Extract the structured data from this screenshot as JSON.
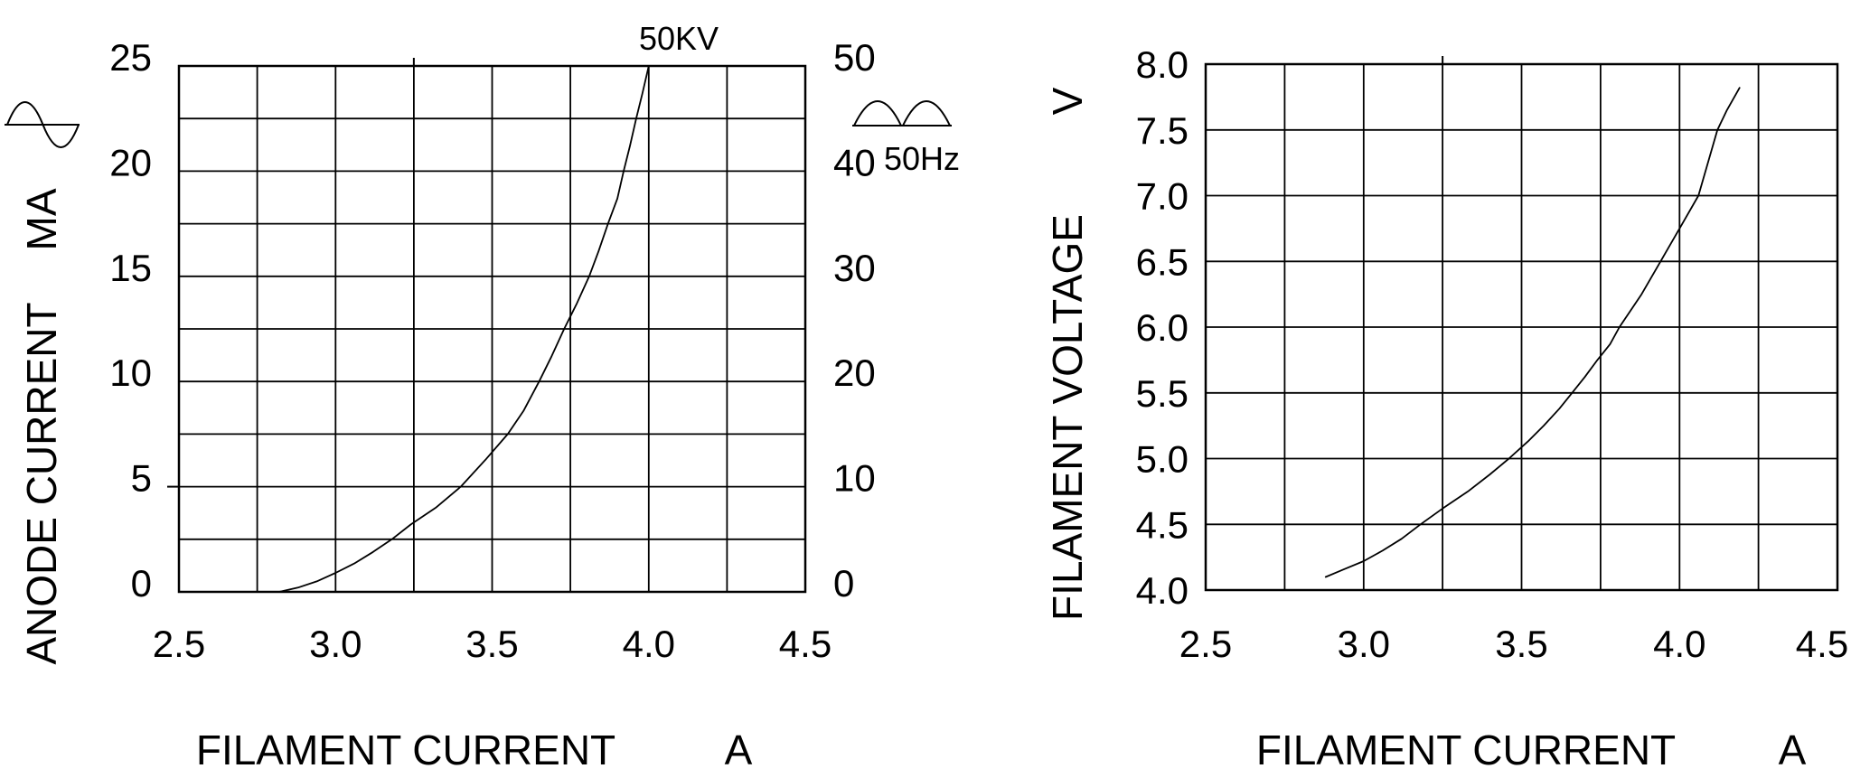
{
  "figure": {
    "background_color": "#ffffff",
    "line_color": "#000000",
    "text_color": "#000000",
    "description": "X-ray tube filament characteristic curves"
  },
  "chart_data": [
    {
      "type": "line",
      "name": "anode-current-vs-filament-current",
      "grid": true,
      "curve_annotation": "50KV",
      "waveform_icon": "sine-wave-icon",
      "x_axis": {
        "label": "FILAMENT CURRENT",
        "unit": "A",
        "range": [
          2.5,
          4.5
        ],
        "grid_step": 0.25,
        "tick_labels": [
          "2.5",
          "3.0",
          "3.5",
          "4.0",
          "4.5"
        ]
      },
      "y_axis_left": {
        "label": "ANODE CURRENT",
        "unit": "MA",
        "range": [
          0,
          25
        ],
        "grid_step": 2.5,
        "tick_labels": [
          "0",
          "5",
          "10",
          "15",
          "20",
          "25"
        ]
      },
      "y_axis_right": {
        "range": [
          0,
          50
        ],
        "tick_labels": [
          "0",
          "10",
          "20",
          "30",
          "40",
          "50"
        ],
        "frequency_annotation": "50Hz",
        "waveform_icon": "full-wave-rectified-icon"
      },
      "series": [
        {
          "name": "50KV",
          "points": [
            [
              2.82,
              0
            ],
            [
              2.88,
              0.2
            ],
            [
              2.94,
              0.5
            ],
            [
              3.0,
              0.9
            ],
            [
              3.06,
              1.35
            ],
            [
              3.12,
              1.9
            ],
            [
              3.18,
              2.5
            ],
            [
              3.24,
              3.2
            ],
            [
              3.32,
              4.0
            ],
            [
              3.4,
              5.0
            ],
            [
              3.48,
              6.3
            ],
            [
              3.55,
              7.5
            ],
            [
              3.6,
              8.6
            ],
            [
              3.65,
              10.0
            ],
            [
              3.69,
              11.2
            ],
            [
              3.73,
              12.5
            ],
            [
              3.77,
              13.7
            ],
            [
              3.81,
              15.0
            ],
            [
              3.84,
              16.2
            ],
            [
              3.87,
              17.5
            ],
            [
              3.9,
              18.7
            ],
            [
              3.92,
              20.0
            ],
            [
              3.94,
              21.2
            ],
            [
              3.96,
              22.5
            ],
            [
              3.98,
              23.7
            ],
            [
              4.0,
              25.0
            ]
          ]
        }
      ]
    },
    {
      "type": "line",
      "name": "filament-voltage-vs-filament-current",
      "grid": true,
      "x_axis": {
        "label": "FILAMENT CURRENT",
        "unit": "A",
        "range": [
          2.5,
          4.5
        ],
        "grid_step": 0.25,
        "tick_labels": [
          "2.5",
          "3.0",
          "3.5",
          "4.0",
          "4.5"
        ]
      },
      "y_axis_left": {
        "label": "FILAMENT VOLTAGE",
        "unit": "V",
        "range": [
          4.0,
          8.0
        ],
        "grid_step": 0.5,
        "tick_labels": [
          "4.0",
          "4.5",
          "5.0",
          "5.5",
          "6.0",
          "6.5",
          "7.0",
          "7.5",
          "8.0"
        ]
      },
      "series": [
        {
          "name": "filament-voltage",
          "points": [
            [
              2.88,
              4.1
            ],
            [
              2.94,
              4.16
            ],
            [
              3.0,
              4.22
            ],
            [
              3.06,
              4.3
            ],
            [
              3.12,
              4.39
            ],
            [
              3.18,
              4.5
            ],
            [
              3.25,
              4.62
            ],
            [
              3.33,
              4.75
            ],
            [
              3.4,
              4.88
            ],
            [
              3.46,
              5.0
            ],
            [
              3.52,
              5.13
            ],
            [
              3.57,
              5.25
            ],
            [
              3.62,
              5.38
            ],
            [
              3.66,
              5.5
            ],
            [
              3.7,
              5.62
            ],
            [
              3.74,
              5.75
            ],
            [
              3.78,
              5.87
            ],
            [
              3.81,
              6.0
            ],
            [
              3.88,
              6.25
            ],
            [
              3.94,
              6.5
            ],
            [
              4.0,
              6.75
            ],
            [
              4.06,
              7.0
            ],
            [
              4.09,
              7.25
            ],
            [
              4.12,
              7.5
            ],
            [
              4.15,
              7.65
            ],
            [
              4.19,
              7.82
            ]
          ]
        }
      ]
    }
  ]
}
